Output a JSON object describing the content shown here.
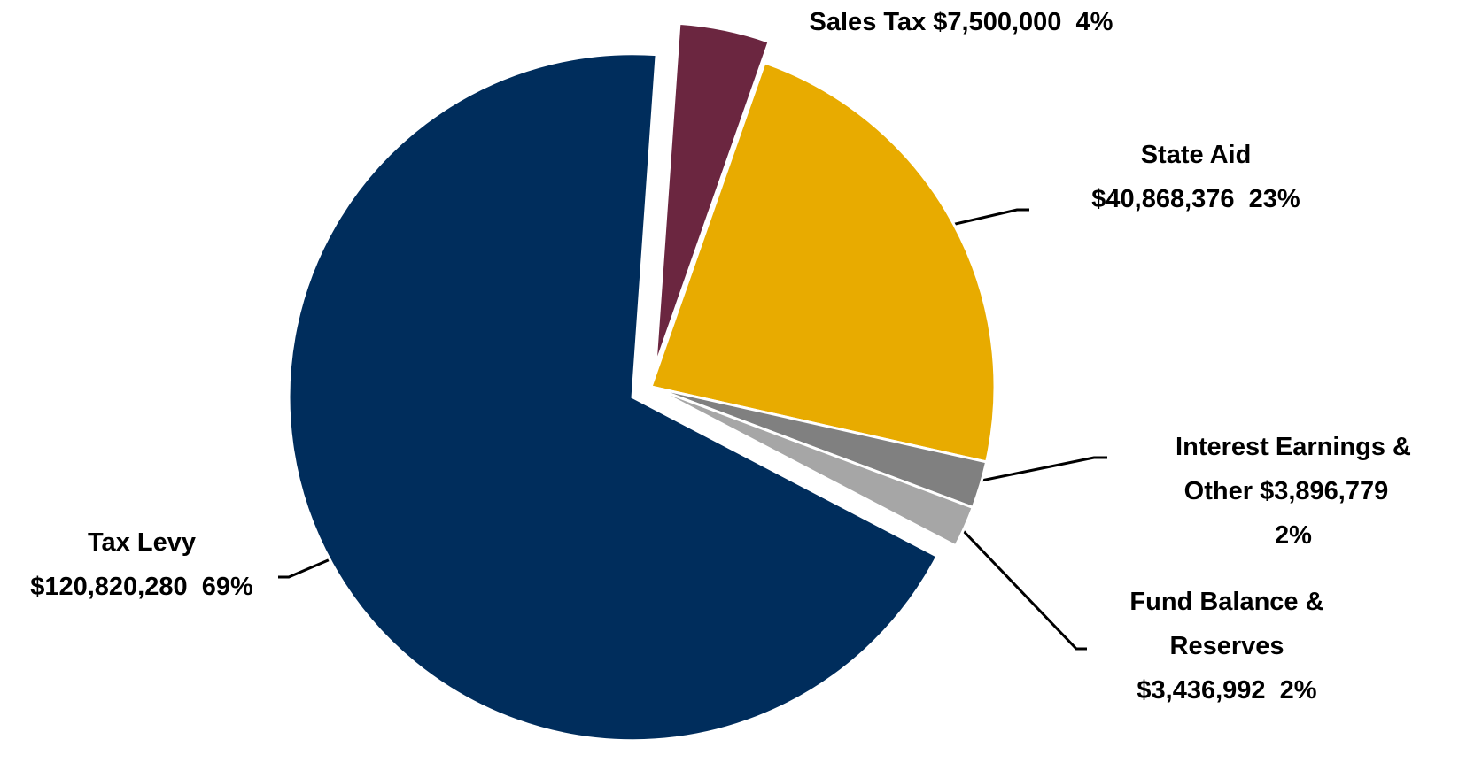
{
  "chart_data": {
    "type": "pie",
    "categories": [
      "Sales Tax",
      "State Aid",
      "Interest Earnings & Other",
      "Fund Balance & Reserves",
      "Tax Levy"
    ],
    "values": [
      7500000,
      40868376,
      3896779,
      3436992,
      120820280
    ],
    "value_labels": [
      "$7,500,000",
      "$40,868,376",
      "$3,896,779",
      "$3,436,992",
      "$120,820,280"
    ],
    "percent_labels": [
      "4%",
      "23%",
      "2%",
      "2%",
      "69%"
    ],
    "colors": [
      "#6b2640",
      "#e8ab00",
      "#808080",
      "#a6a6a6",
      "#002d5c"
    ],
    "explode": [
      true,
      false,
      false,
      false,
      true
    ]
  }
}
